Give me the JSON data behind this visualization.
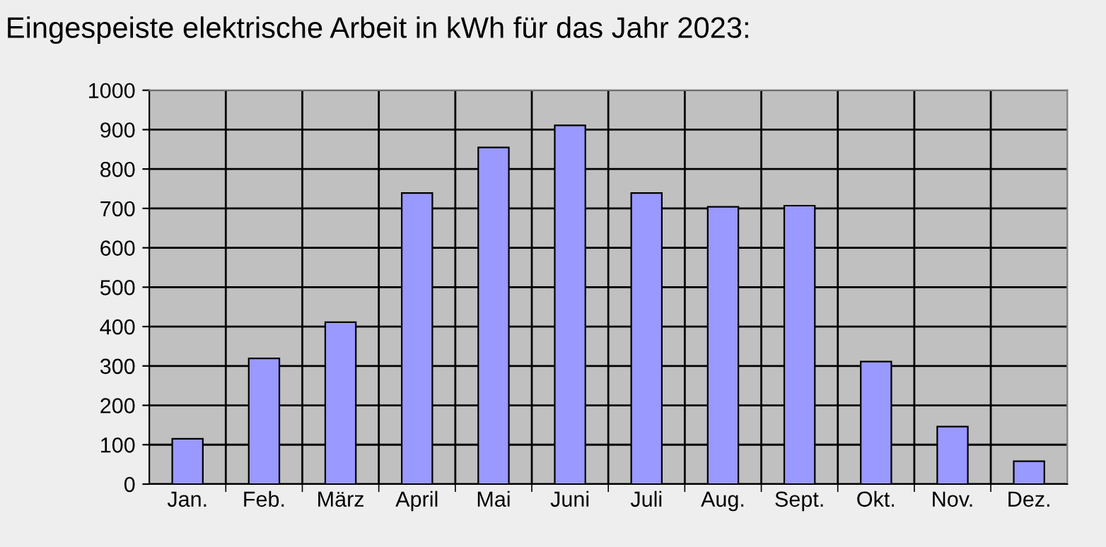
{
  "chart_data": {
    "type": "bar",
    "title": "Eingespeiste elektrische Arbeit in kWh für das Jahr 2023:",
    "categories": [
      "Jan.",
      "Feb.",
      "März",
      "April",
      "Mai",
      "Juni",
      "Juli",
      "Aug.",
      "Sept.",
      "Okt.",
      "Nov.",
      "Dez."
    ],
    "values": [
      115,
      319,
      411,
      739,
      855,
      911,
      739,
      704,
      707,
      311,
      146,
      58
    ],
    "color": "#9999ff",
    "ylim": [
      0,
      1000
    ],
    "yticks": [
      0,
      100,
      200,
      300,
      400,
      500,
      600,
      700,
      800,
      900,
      1000
    ],
    "grid": true
  }
}
